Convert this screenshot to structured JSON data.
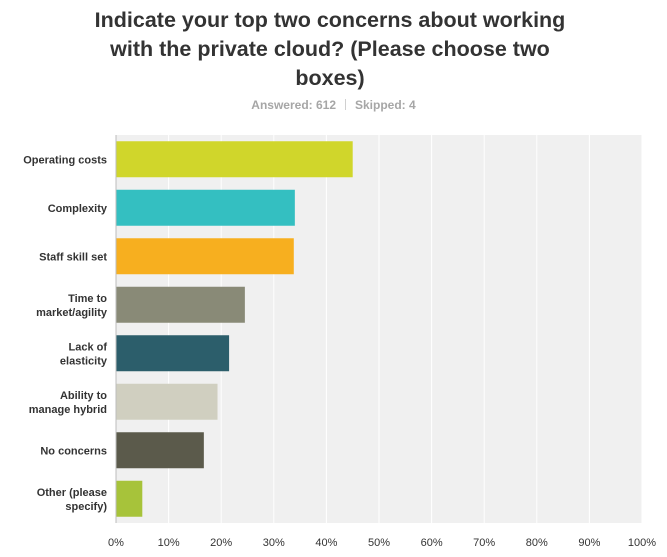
{
  "stats": {
    "answered": "Answered: 612",
    "skipped": "Skipped: 4"
  },
  "chart_data": {
    "type": "bar",
    "orientation": "horizontal",
    "title": "Indicate your top two concerns about working with the private cloud? (Please choose two boxes)",
    "categories": [
      [
        "Operating costs"
      ],
      [
        "Complexity"
      ],
      [
        "Staff skill set"
      ],
      [
        "Time to",
        "market/agility"
      ],
      [
        "Lack of",
        "elasticity"
      ],
      [
        "Ability to",
        "manage hybrid"
      ],
      [
        "No concerns"
      ],
      [
        "Other (please",
        "specify)"
      ]
    ],
    "values": [
      45,
      34,
      33.8,
      24.5,
      21.5,
      19.3,
      16.7,
      5
    ],
    "colors": [
      "#d0d62b",
      "#34bfc1",
      "#f7af1f",
      "#898a77",
      "#2c5e6b",
      "#d0cfc0",
      "#5b5a4b",
      "#a7c33a"
    ],
    "xlim": [
      0,
      100
    ],
    "ticks": [
      "0%",
      "10%",
      "20%",
      "30%",
      "40%",
      "50%",
      "60%",
      "70%",
      "80%",
      "90%",
      "100%"
    ],
    "grid": true
  }
}
